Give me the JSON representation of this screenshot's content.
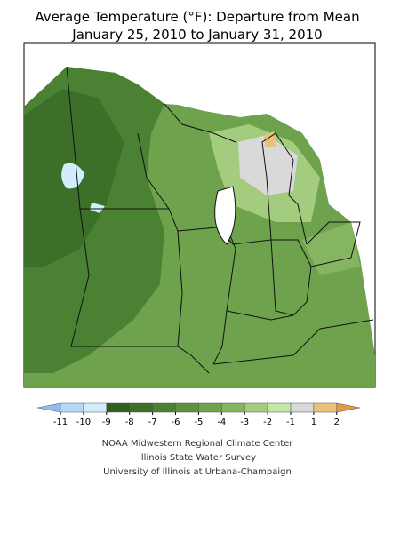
{
  "title": [
    "Average Temperature (°F): Departure from Mean",
    "January 25, 2010 to January 31, 2010"
  ],
  "legend": {
    "ticks": [
      -11,
      -10,
      -9,
      -8,
      -7,
      -6,
      -5,
      -4,
      -3,
      -2,
      -1,
      1,
      2
    ],
    "colors": [
      "#8fbff0",
      "#b4d8fa",
      "#d2eefc",
      "#2f5e1f",
      "#3c7028",
      "#4b8133",
      "#5b913f",
      "#6ea24d",
      "#86b562",
      "#a3cc7f",
      "#c4e6a6",
      "#d9d9d9",
      "#e9c27a",
      "#e29a3c"
    ]
  },
  "credits": [
    "NOAA Midwestern Regional Climate Center",
    "Illinois State Water Survey",
    "University of Illinois at Urbana-Champaign"
  ]
}
